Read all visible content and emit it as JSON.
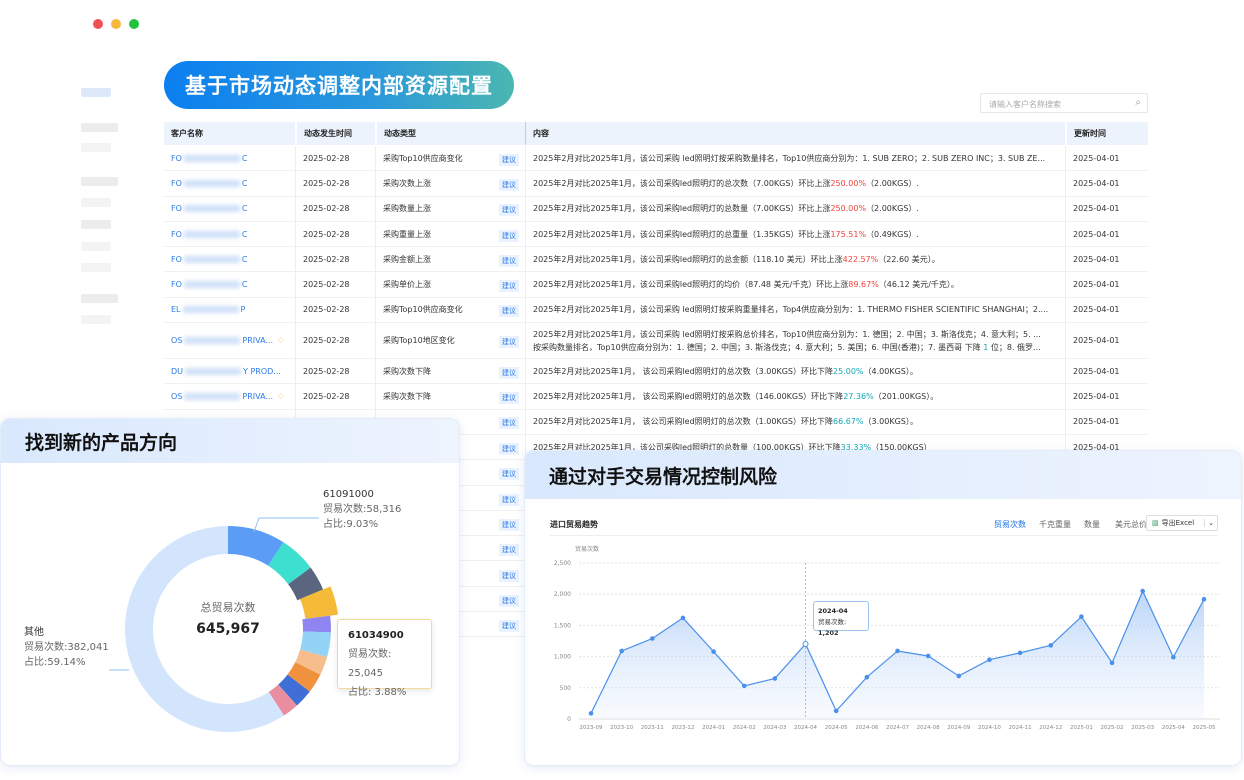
{
  "window": {
    "controls": [
      {
        "color": "#f05252"
      },
      {
        "color": "#f5b83d"
      },
      {
        "color": "#22c241"
      }
    ]
  },
  "banner": {
    "title": "基于市场动态调整内部资源配置"
  },
  "search": {
    "placeholder": "请输入客户名称搜索",
    "icon": "search-icon"
  },
  "table": {
    "headers": [
      "客户名称",
      "动态发生时间",
      "动态类型",
      "内容",
      "更新时间"
    ],
    "tag_label": "建议",
    "rows": [
      {
        "name_pre": "FO",
        "name_post": "C",
        "date": "2025-02-28",
        "type": "采购Top10供应商变化",
        "pre": "2025年2月对比2025年1月，该公司采购 led照明灯按采购数量排名，Top10供应商分别为：1. SUB ZERO；2. SUB ZERO INC；3. SUB ZE...",
        "hl": "",
        "post": "",
        "trend": "",
        "updated": "2025-04-01"
      },
      {
        "name_pre": "FO",
        "name_post": "C",
        "date": "2025-02-28",
        "type": "采购次数上涨",
        "pre": "2025年2月对比2025年1月，该公司采购led照明灯的总次数（7.00KGS）环比上涨",
        "hl": "250.00%",
        "post": "（2.00KGS）.",
        "trend": "up",
        "updated": "2025-04-01"
      },
      {
        "name_pre": "FO",
        "name_post": "C",
        "date": "2025-02-28",
        "type": "采购数量上涨",
        "pre": "2025年2月对比2025年1月，该公司采购led照明灯的总数量（7.00KGS）环比上涨",
        "hl": "250.00%",
        "post": "（2.00KGS）.",
        "trend": "up",
        "updated": "2025-04-01"
      },
      {
        "name_pre": "FO",
        "name_post": "C",
        "date": "2025-02-28",
        "type": "采购重量上涨",
        "pre": "2025年2月对比2025年1月，该公司采购led照明灯的总重量（1.35KGS）环比上涨",
        "hl": "175.51%",
        "post": "（0.49KGS）.",
        "trend": "up",
        "updated": "2025-04-01"
      },
      {
        "name_pre": "FO",
        "name_post": "C",
        "date": "2025-02-28",
        "type": "采购金额上涨",
        "pre": "2025年2月对比2025年1月，该公司采购led照明灯的总金额（118.10 美元）环比上涨",
        "hl": "422.57%",
        "post": "（22.60 美元）。",
        "trend": "up",
        "updated": "2025-04-01"
      },
      {
        "name_pre": "FO",
        "name_post": "C",
        "date": "2025-02-28",
        "type": "采购单价上涨",
        "pre": "2025年2月对比2025年1月，该公司采购led照明灯的均价（87.48 美元/千克）环比上涨",
        "hl": "89.67%",
        "post": "（46.12 美元/千克）。",
        "trend": "up",
        "updated": "2025-04-01"
      },
      {
        "name_pre": "EL",
        "name_post": "P",
        "date": "2025-02-28",
        "type": "采购Top10供应商变化",
        "pre": "2025年2月对比2025年1月，该公司采购 led照明灯按采购重量排名，Top4供应商分别为：1. THERMO FISHER SCIENTIFIC SHANGHAI；2....",
        "hl": "",
        "post": "",
        "trend": "",
        "updated": "2025-04-01"
      },
      {
        "name_pre": "OS",
        "name_post": "PRIVA...",
        "date": "2025-02-28",
        "type": "采购Top10地区变化",
        "pre": "2025年2月对比2025年1月，该公司采购 led照明灯按采购总价排名，Top10供应商分别为：1. 德国；2. 中国；3. 斯洛伐克；4. 意大利；5. ...",
        "pre2": "按采购数量排名，Top10供应商分别为：1. 德国；2. 中国；3. 斯洛伐克；4. 意大利；5. 美国；6. 中国(香港)；7. 墨西哥 下降 ",
        "hl": "1",
        "post": " 位；8. 俄罗...",
        "trend": "down",
        "tall": true,
        "icon": true,
        "updated": "2025-04-01"
      },
      {
        "name_pre": "DU",
        "name_post": "Y PROD...",
        "date": "2025-02-28",
        "type": "采购次数下降",
        "pre": "2025年2月对比2025年1月， 该公司采购led照明灯的总次数（3.00KGS）环比下降",
        "hl": "25.00%",
        "post": "（4.00KGS）。",
        "trend": "down",
        "updated": "2025-04-01"
      },
      {
        "name_pre": "OS",
        "name_post": "PRIVA...",
        "date": "2025-02-28",
        "type": "采购次数下降",
        "pre": "2025年2月对比2025年1月， 该公司采购led照明灯的总次数（146.00KGS）环比下降",
        "hl": "27.36%",
        "post": "（201.00KGS）。",
        "trend": "down",
        "icon": true,
        "updated": "2025-04-01"
      },
      {
        "name_pre": "",
        "name_post": "",
        "date": "",
        "type": "",
        "pre": "2025年2月对比2025年1月， 该公司采购led照明灯的总次数（1.00KGS）环比下降",
        "hl": "66.67%",
        "post": "（3.00KGS）。",
        "trend": "down",
        "updated": "2025-04-01"
      },
      {
        "name_pre": "",
        "name_post": "",
        "date": "",
        "type": "",
        "pre": "2025年2月对比2025年1月，该公司采购led照明灯的总数量（100.00KGS）环比下降",
        "hl": "33.33%",
        "post": "（150.00KGS）",
        "trend": "down",
        "updated": "2025-04-01"
      }
    ],
    "extra_tag_rows": 7
  },
  "product_panel": {
    "title": "找到新的产品方向",
    "center_label": "总贸易次数",
    "center_value": "645,967",
    "callout_top": {
      "code": "61091000",
      "count": "贸易次数:58,316",
      "share": "占比:9.03%"
    },
    "callout_left": {
      "code": "其他",
      "count": "贸易次数:382,041",
      "share": "占比:59.14%"
    },
    "tooltip": {
      "code": "61034900",
      "count": "贸易次数: 25,045",
      "share": "占比: 3.88%"
    }
  },
  "chart_data": {
    "type": "pie",
    "variant": "donut",
    "total": 645967,
    "slices": [
      {
        "name": "61091000",
        "value": 58316,
        "percent": 9.03,
        "color": "#5b9cf6"
      },
      {
        "percent": 5.8,
        "color": "#3ddfcf"
      },
      {
        "percent": 3.9,
        "color": "#5a6680"
      },
      {
        "percent": 4.2,
        "color": "#f5ba38",
        "exploded": true
      },
      {
        "percent": 2.6,
        "color": "#8f84f2"
      },
      {
        "name": "61034900",
        "value": 25045,
        "percent": 3.88,
        "color": "#93d3f5"
      },
      {
        "percent": 2.9,
        "color": "#f8bd8c"
      },
      {
        "percent": 3.1,
        "color": "#f0913d"
      },
      {
        "percent": 2.9,
        "color": "#3f6fd6"
      },
      {
        "percent": 2.55,
        "color": "#e88ea0"
      },
      {
        "name": "其他",
        "value": 382041,
        "percent": 59.14,
        "color": "#d3e5fc"
      }
    ]
  },
  "risk_panel": {
    "title": "通过对手交易情况控制风险",
    "chart_title": "进口贸易趋势",
    "tabs": [
      {
        "label": "贸易次数",
        "active": true
      },
      {
        "label": "千克重量"
      },
      {
        "label": "数量"
      },
      {
        "label": "美元总价"
      }
    ],
    "export_label": "导出Excel",
    "tooltip": {
      "x": "2024-04",
      "label": "贸易次数:",
      "value": "1,202"
    },
    "line_chart": {
      "type": "area",
      "ylabel": "贸易次数",
      "ylim": [
        0,
        2500
      ],
      "yticks": [
        "0",
        "500",
        "1,000",
        "1,500",
        "2,000",
        "2,500"
      ],
      "grid": true,
      "color": "#4a90ea",
      "x": [
        "2023-09",
        "2023-10",
        "2023-11",
        "2023-12",
        "2024-01",
        "2024-02",
        "2024-03",
        "2024-04",
        "2024-05",
        "2024-06",
        "2024-07",
        "2024-08",
        "2024-09",
        "2024-10",
        "2024-11",
        "2024-12",
        "2025-01",
        "2025-02",
        "2025-03",
        "2025-04",
        "2025-05"
      ],
      "y": [
        90,
        1090,
        1290,
        1620,
        1080,
        530,
        650,
        1202,
        130,
        670,
        1090,
        1010,
        690,
        950,
        1060,
        1180,
        1640,
        900,
        2050,
        990,
        1920
      ]
    }
  }
}
